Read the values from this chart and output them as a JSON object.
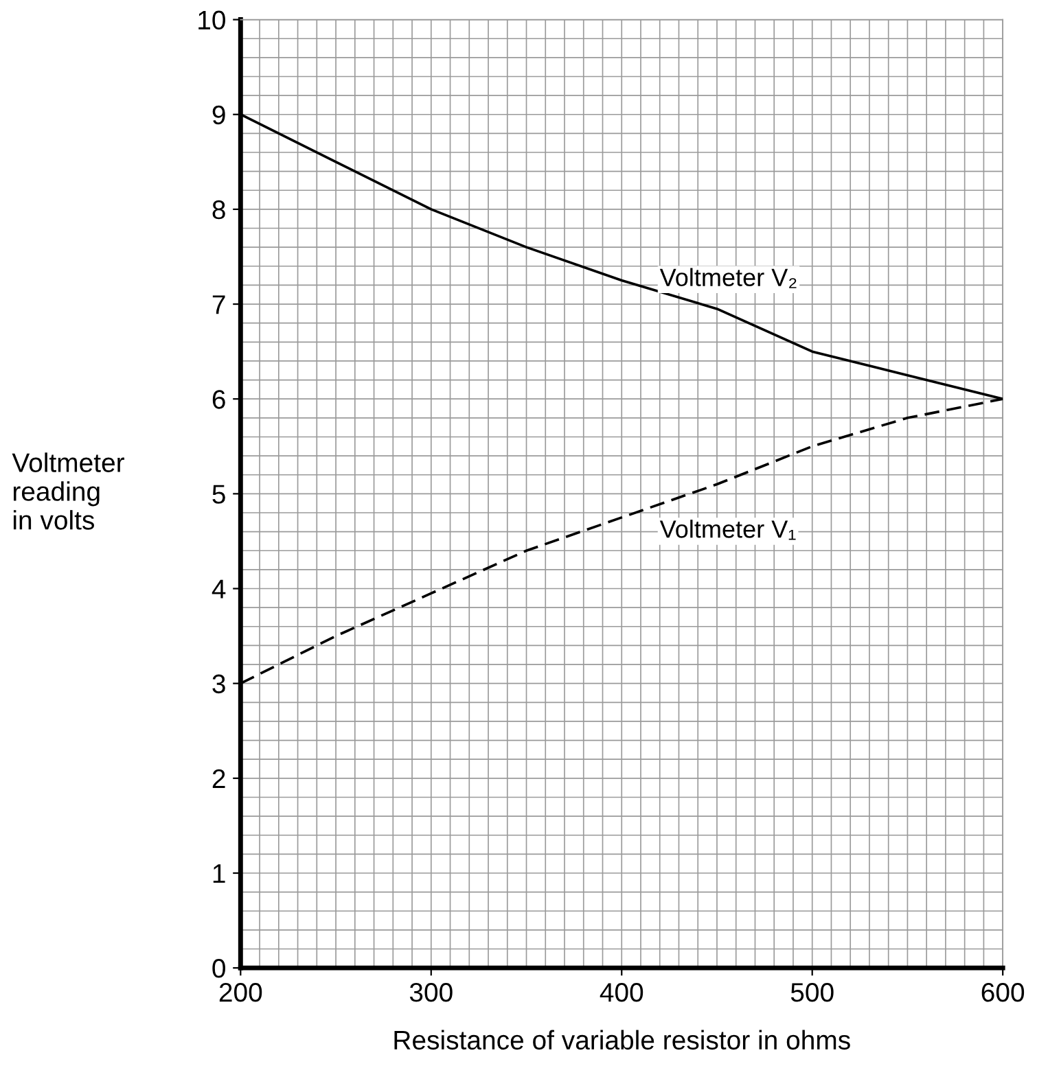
{
  "chart_data": {
    "type": "line",
    "xlabel": "Resistance of variable resistor in ohms",
    "ylabel": "Voltmeter\nreading\nin volts",
    "x": [
      200,
      250,
      300,
      350,
      400,
      450,
      500,
      550,
      600
    ],
    "series": [
      {
        "name": "Voltmeter V₂",
        "color": "#000000",
        "line_style": "solid",
        "values": [
          9.0,
          8.5,
          8.0,
          7.6,
          7.25,
          6.95,
          6.5,
          6.25,
          6.0
        ]
      },
      {
        "name": "Voltmeter V₁",
        "color": "#000000",
        "line_style": "dashed",
        "values": [
          3.0,
          3.5,
          3.95,
          4.4,
          4.75,
          5.1,
          5.5,
          5.8,
          6.0
        ]
      }
    ],
    "xlim": [
      200,
      600
    ],
    "xticks": [
      200,
      300,
      400,
      500,
      600
    ],
    "ylim": [
      0,
      10
    ],
    "yticks": [
      0,
      1,
      2,
      3,
      4,
      5,
      6,
      7,
      8,
      9,
      10
    ],
    "grid": true,
    "marker": "none"
  }
}
